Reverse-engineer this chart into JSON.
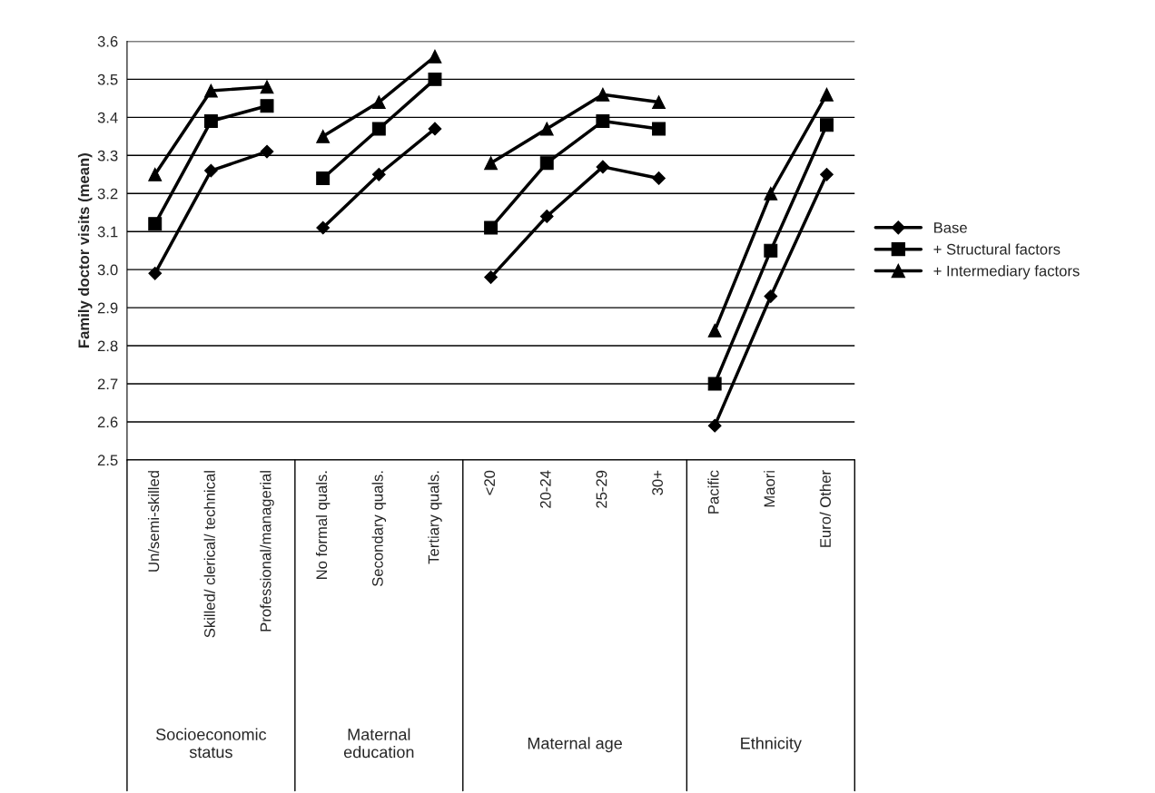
{
  "chart_data": {
    "type": "line",
    "ylabel": "Family doctor visits (mean)",
    "categories": [
      "Un/semi-skilled",
      "Skilled/ clerical/ technical",
      "Professional/managerial",
      "No formal quals.",
      "Secondary quals.",
      "Tertiary quals.",
      "<20",
      "20-24",
      "25-29",
      "30+",
      "Pacific",
      "Maori",
      "Euro/ Other"
    ],
    "series": [
      {
        "name": "Base",
        "color": "#000000",
        "marker": "diamond",
        "values": [
          2.99,
          3.26,
          3.31,
          null,
          null,
          null,
          null,
          null,
          null,
          null,
          null,
          null,
          null
        ]
      },
      {
        "name": "+ Structural factors",
        "color": "#000000",
        "marker": "square",
        "values": [
          3.12,
          3.39,
          3.43,
          null,
          null,
          null,
          null,
          null,
          null,
          null,
          null,
          null,
          null
        ]
      },
      {
        "name": "+ Intermediary factors",
        "color": "#000000",
        "marker": "triangle",
        "values": [
          3.25,
          3.47,
          3.48,
          null,
          null,
          null,
          null,
          null,
          null,
          null,
          null,
          null,
          null
        ]
      },
      {
        "color": "#000000",
        "marker": "diamond",
        "values": [
          null,
          null,
          null,
          3.11,
          3.25,
          3.37,
          null,
          null,
          null,
          null,
          null,
          null,
          null
        ]
      },
      {
        "color": "#000000",
        "marker": "square",
        "values": [
          null,
          null,
          null,
          3.24,
          3.37,
          3.5,
          null,
          null,
          null,
          null,
          null,
          null,
          null
        ]
      },
      {
        "color": "#000000",
        "marker": "triangle",
        "values": [
          null,
          null,
          null,
          3.35,
          3.44,
          3.56,
          null,
          null,
          null,
          null,
          null,
          null,
          null
        ]
      },
      {
        "color": "#000000",
        "marker": "diamond",
        "values": [
          null,
          null,
          null,
          null,
          null,
          null,
          2.98,
          3.14,
          3.27,
          3.24,
          null,
          null,
          null
        ]
      },
      {
        "color": "#000000",
        "marker": "square",
        "values": [
          null,
          null,
          null,
          null,
          null,
          null,
          3.11,
          3.28,
          3.39,
          3.37,
          null,
          null,
          null
        ]
      },
      {
        "color": "#000000",
        "marker": "triangle",
        "values": [
          null,
          null,
          null,
          null,
          null,
          null,
          3.28,
          3.37,
          3.46,
          3.44,
          null,
          null,
          null
        ]
      },
      {
        "color": "#000000",
        "marker": "diamond",
        "values": [
          null,
          null,
          null,
          null,
          null,
          null,
          null,
          null,
          null,
          null,
          2.59,
          2.93,
          3.25
        ]
      },
      {
        "color": "#000000",
        "marker": "square",
        "values": [
          null,
          null,
          null,
          null,
          null,
          null,
          null,
          null,
          null,
          null,
          2.7,
          3.05,
          3.38
        ]
      },
      {
        "color": "#000000",
        "marker": "triangle",
        "values": [
          null,
          null,
          null,
          null,
          null,
          null,
          null,
          null,
          null,
          null,
          2.84,
          3.2,
          3.46
        ]
      }
    ],
    "annotations": [
      "Socioeconomic\nstatus",
      "Maternal\neducation",
      "Maternal age",
      "Ethnicity"
    ],
    "ylim": [
      2.5,
      3.6
    ],
    "yticks": [
      {
        "value": 2.5,
        "label": "2.5"
      },
      {
        "value": 2.6,
        "label": "2.6"
      },
      {
        "value": 2.7,
        "label": "2.7"
      },
      {
        "value": 2.8,
        "label": "2.8"
      },
      {
        "value": 2.9,
        "label": "2.9"
      },
      {
        "value": 3.0,
        "label": "3.0"
      },
      {
        "value": 3.1,
        "label": "3.1"
      },
      {
        "value": 3.2,
        "label": "3.2"
      },
      {
        "value": 3.3,
        "label": "3.3"
      },
      {
        "value": 3.4,
        "label": "3.4"
      },
      {
        "value": 3.5,
        "label": "3.5"
      },
      {
        "value": 3.6,
        "label": "3.6"
      }
    ],
    "grid": "y",
    "legend": "right",
    "line_style": "solid"
  }
}
